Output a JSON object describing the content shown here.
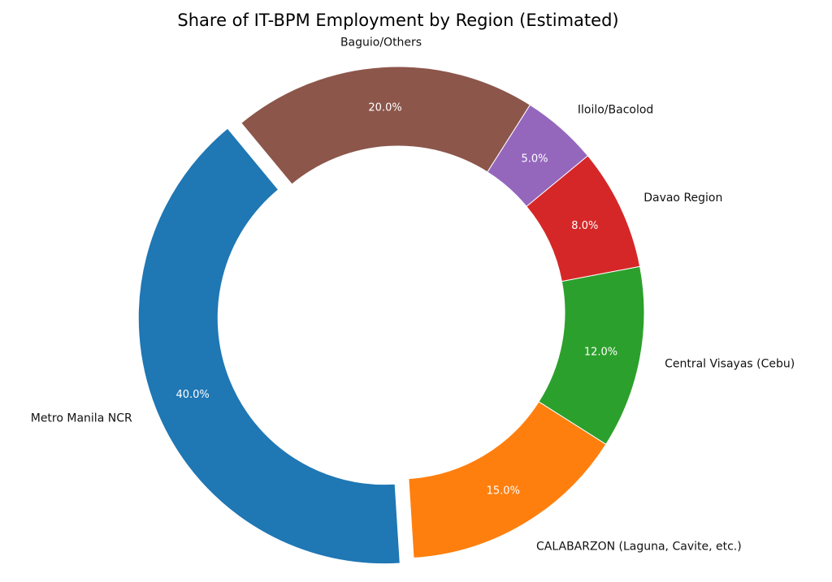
{
  "chart_data": {
    "type": "pie",
    "title": "Share of IT-BPM Employment by Region (Estimated)",
    "donut": true,
    "categories": [
      "Metro Manila NCR",
      "CALABARZON (Laguna, Cavite, etc.)",
      "Central Visayas (Cebu)",
      "Davao Region",
      "Iloilo/Bacolod",
      "Baguio/Others"
    ],
    "values": [
      40,
      15,
      12,
      8,
      5,
      20
    ],
    "value_labels": [
      "40.0%",
      "15.0%",
      "12.0%",
      "8.0%",
      "5.0%",
      "20.0%"
    ],
    "colors": [
      "#1f77b4",
      "#ff7f0e",
      "#2ca02c",
      "#d62728",
      "#9467bd",
      "#8c564b"
    ],
    "exploded": [
      "Metro Manila NCR"
    ],
    "legend": "none"
  }
}
